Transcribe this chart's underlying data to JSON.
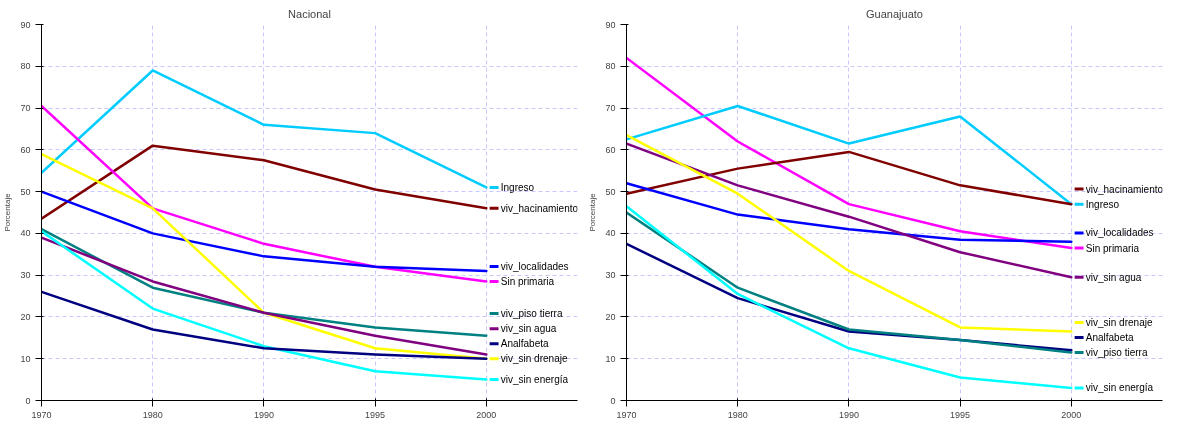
{
  "chart_data": [
    {
      "type": "line",
      "title": "Nacional",
      "ylabel": "Porcentaje",
      "categories": [
        "1970",
        "1980",
        "1990",
        "1995",
        "2000"
      ],
      "ylim": [
        0,
        90
      ],
      "yticks": [
        0,
        10,
        20,
        30,
        40,
        50,
        60,
        70,
        80,
        90
      ],
      "grid": true,
      "legend": "right",
      "marker": "none",
      "line_style": "solid",
      "series": [
        {
          "name": "Ingreso",
          "color": "#00ccff",
          "values": [
            54.5,
            79,
            66,
            64,
            51
          ]
        },
        {
          "name": "viv_hacinamiento",
          "color": "#800000",
          "values": [
            43.5,
            61,
            57.5,
            50.5,
            46
          ]
        },
        {
          "name": "Sin primaria",
          "color": "#ff00ff",
          "values": [
            70.5,
            46,
            37.5,
            32,
            28.5
          ]
        },
        {
          "name": "viv_localidades",
          "color": "#0000ff",
          "values": [
            50,
            40,
            34.5,
            32,
            31
          ]
        },
        {
          "name": "viv_sin drenaje",
          "color": "#ffff00",
          "values": [
            59,
            46,
            21,
            12.5,
            10
          ]
        },
        {
          "name": "viv_piso tierra",
          "color": "#008080",
          "values": [
            41,
            27,
            21,
            17.5,
            15.5
          ]
        },
        {
          "name": "viv_sin agua",
          "color": "#800080",
          "values": [
            39,
            28.5,
            21,
            15.5,
            11
          ]
        },
        {
          "name": "viv_sin energía",
          "color": "#00ffff",
          "values": [
            40.5,
            22,
            13,
            7,
            5
          ]
        },
        {
          "name": "Analfabeta",
          "color": "#000080",
          "values": [
            26,
            17,
            12.5,
            11,
            10
          ]
        }
      ]
    },
    {
      "type": "line",
      "title": "Guanajuato",
      "ylabel": "Porcentaje",
      "categories": [
        "1970",
        "1980",
        "1990",
        "1995",
        "2000"
      ],
      "ylim": [
        0,
        90
      ],
      "yticks": [
        0,
        10,
        20,
        30,
        40,
        50,
        60,
        70,
        80,
        90
      ],
      "grid": true,
      "legend": "right",
      "marker": "none",
      "line_style": "solid",
      "series": [
        {
          "name": "Sin primaria",
          "color": "#ff00ff",
          "values": [
            82,
            62,
            47,
            40.5,
            36.5
          ]
        },
        {
          "name": "Ingreso",
          "color": "#00ccff",
          "values": [
            62.5,
            70.5,
            61.5,
            68,
            47
          ]
        },
        {
          "name": "viv_hacinamiento",
          "color": "#800000",
          "values": [
            49.5,
            55.5,
            59.5,
            51.5,
            47
          ]
        },
        {
          "name": "viv_localidades",
          "color": "#0000ff",
          "values": [
            52,
            44.5,
            41,
            38.5,
            38
          ]
        },
        {
          "name": "viv_sin agua",
          "color": "#800080",
          "values": [
            61.5,
            51.5,
            44,
            35.5,
            29.5
          ]
        },
        {
          "name": "viv_sin drenaje",
          "color": "#ffff00",
          "values": [
            63.5,
            49.5,
            31,
            17.5,
            16.5
          ]
        },
        {
          "name": "Analfabeta",
          "color": "#000080",
          "values": [
            37.5,
            24.5,
            16.5,
            14.5,
            12
          ]
        },
        {
          "name": "viv_piso tierra",
          "color": "#008080",
          "values": [
            45,
            27,
            17,
            14.5,
            11.5
          ]
        },
        {
          "name": "viv_sin energía",
          "color": "#00ffff",
          "values": [
            46.5,
            25.5,
            12.5,
            5.5,
            3
          ]
        }
      ]
    }
  ]
}
